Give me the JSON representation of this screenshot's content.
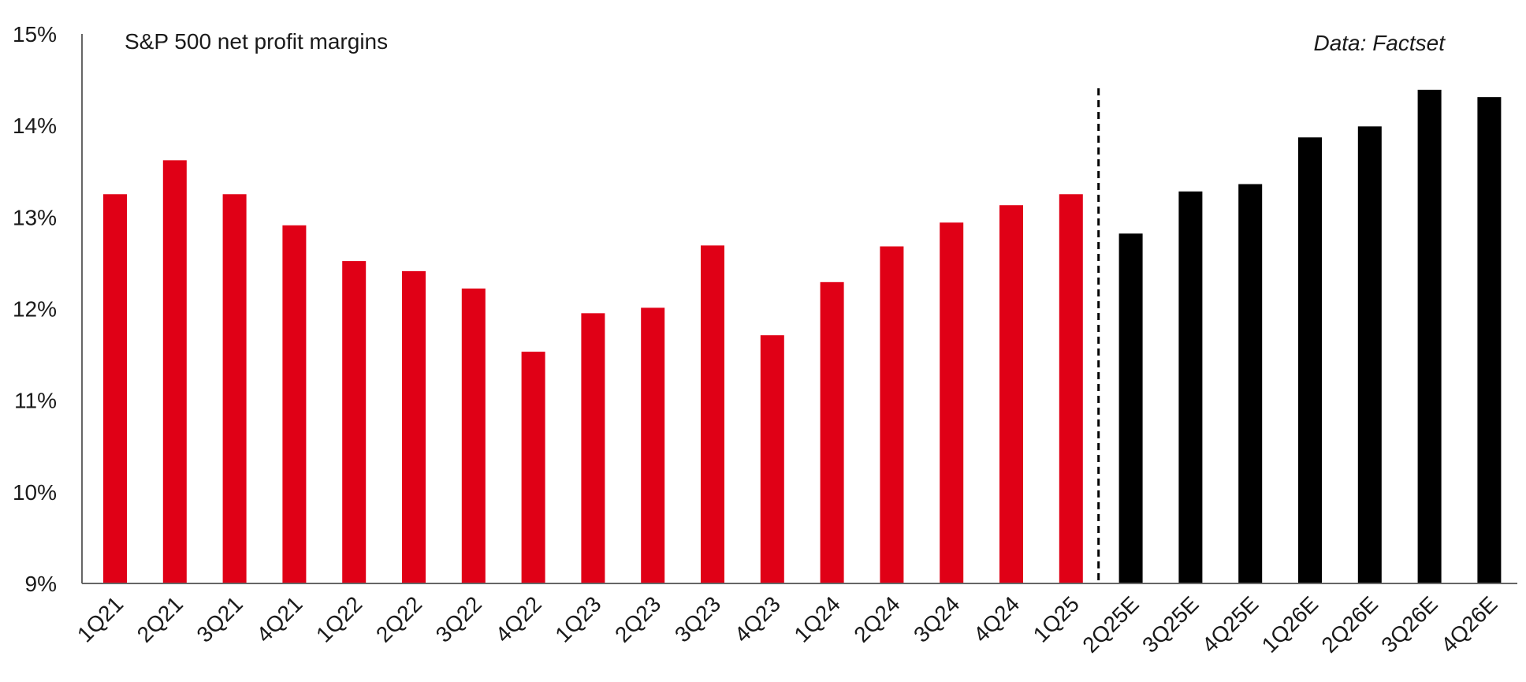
{
  "chart_data": {
    "type": "bar",
    "title": "S&P 500 net profit margins",
    "source_note": "Data: Factset",
    "ylim": [
      9,
      15
    ],
    "yticks": [
      "9%",
      "10%",
      "11%",
      "12%",
      "13%",
      "14%",
      "15%"
    ],
    "ytick_values": [
      9,
      10,
      11,
      12,
      13,
      14,
      15
    ],
    "grid": false,
    "categories": [
      "1Q21",
      "2Q21",
      "3Q21",
      "4Q21",
      "1Q22",
      "2Q22",
      "3Q22",
      "4Q22",
      "1Q23",
      "2Q23",
      "3Q23",
      "4Q23",
      "1Q24",
      "2Q24",
      "3Q24",
      "4Q24",
      "1Q25",
      "2Q25E",
      "3Q25E",
      "4Q25E",
      "1Q26E",
      "2Q26E",
      "3Q26E",
      "4Q26E"
    ],
    "values": [
      13.25,
      13.62,
      13.25,
      12.91,
      12.52,
      12.41,
      12.22,
      11.53,
      11.95,
      12.01,
      12.69,
      11.71,
      12.29,
      12.68,
      12.94,
      13.13,
      13.25,
      12.82,
      13.28,
      13.36,
      13.87,
      13.99,
      14.39,
      14.31
    ],
    "actual_count": 17,
    "colors": {
      "actual": "#e00016",
      "estimate": "#000000",
      "axis": "#666666",
      "divider": "#000000"
    }
  }
}
